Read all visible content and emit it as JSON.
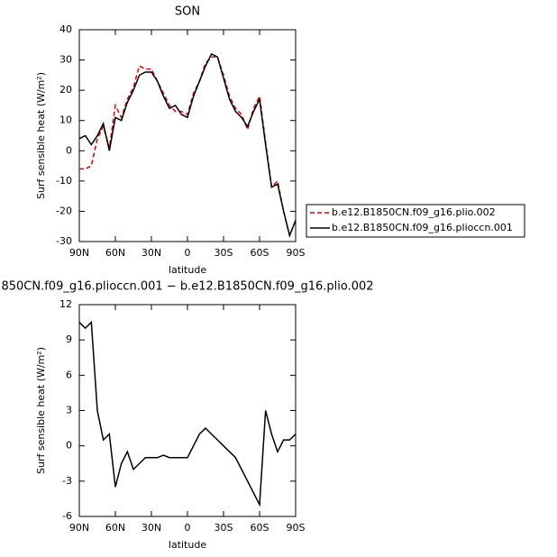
{
  "chart_data": [
    {
      "type": "line",
      "title": "SON",
      "x_label": "latitude",
      "y_label": "Surf sensible heat (W/m²)",
      "x": [
        90,
        85,
        80,
        75,
        70,
        65,
        60,
        55,
        50,
        45,
        40,
        35,
        30,
        25,
        20,
        15,
        10,
        5,
        0,
        -5,
        -10,
        -15,
        -20,
        -25,
        -30,
        -35,
        -40,
        -45,
        -50,
        -55,
        -60,
        -65,
        -70,
        -75,
        -80,
        -85,
        -90
      ],
      "xlim": [
        90,
        -90
      ],
      "xticks": [
        {
          "value": 90,
          "label": "90N"
        },
        {
          "value": 60,
          "label": "60N"
        },
        {
          "value": 30,
          "label": "30N"
        },
        0,
        {
          "value": -30,
          "label": "30S"
        },
        {
          "value": -60,
          "label": "60S"
        },
        {
          "value": -90,
          "label": "90S"
        }
      ],
      "ylim": [
        -30,
        40
      ],
      "yticks": [
        -30,
        -20,
        -10,
        0,
        10,
        20,
        30,
        40
      ],
      "series": [
        {
          "name": "b.e12.B1850CN.f09_g16.plio.002",
          "color": "#e00000",
          "dash": true,
          "values": [
            -6,
            -6,
            -5,
            4,
            8,
            1,
            15,
            11,
            17,
            21,
            28,
            27,
            27,
            23,
            19,
            15,
            13,
            13,
            12,
            19,
            23,
            29,
            31,
            31,
            25,
            18,
            14,
            12,
            7,
            14,
            18,
            3,
            -12,
            -10,
            -20,
            -28,
            -23
          ]
        },
        {
          "name": "b.e12.B1850CN.f09_g16.plioccn.001",
          "color": "#000000",
          "dash": false,
          "values": [
            4,
            5,
            2,
            5,
            9,
            0,
            11,
            10,
            16,
            20,
            25,
            26,
            26,
            23,
            18,
            14,
            15,
            12,
            11,
            18,
            23,
            28,
            32,
            31,
            24,
            17,
            13,
            11,
            8,
            13,
            17,
            2,
            -12,
            -11,
            -20,
            -28,
            -23
          ]
        }
      ]
    },
    {
      "type": "line",
      "title": "850CN.f09_g16.plioccn.001 − b.e12.B1850CN.f09_g16.plio.002",
      "x_label": "latitude",
      "y_label": "Surf sensible heat (W/m²)",
      "x": [
        90,
        85,
        80,
        75,
        70,
        65,
        60,
        55,
        50,
        45,
        40,
        35,
        30,
        25,
        20,
        15,
        10,
        5,
        0,
        -5,
        -10,
        -15,
        -20,
        -25,
        -30,
        -35,
        -40,
        -45,
        -50,
        -55,
        -60,
        -65,
        -70,
        -75,
        -80,
        -85,
        -90
      ],
      "xlim": [
        90,
        -90
      ],
      "xticks": [
        {
          "value": 90,
          "label": "90N"
        },
        {
          "value": 60,
          "label": "60N"
        },
        {
          "value": 30,
          "label": "30N"
        },
        0,
        {
          "value": -30,
          "label": "30S"
        },
        {
          "value": -60,
          "label": "60S"
        },
        {
          "value": -90,
          "label": "90S"
        }
      ],
      "ylim": [
        -6,
        12
      ],
      "yticks": [
        -6,
        -3,
        0,
        3,
        6,
        9,
        12
      ],
      "series": [
        {
          "color": "#000000",
          "dash": false,
          "values": [
            10.5,
            10,
            10.5,
            3,
            0.5,
            1,
            -3.5,
            -1.5,
            -0.5,
            -2,
            -1.5,
            -1,
            -1,
            -1,
            -0.8,
            -1,
            -1,
            -1,
            -1,
            0,
            1,
            1.5,
            1,
            0.5,
            0,
            -0.5,
            -1,
            -2,
            -3,
            -4,
            -5,
            3,
            1,
            -0.5,
            0.5,
            0.5,
            1
          ]
        }
      ]
    }
  ]
}
